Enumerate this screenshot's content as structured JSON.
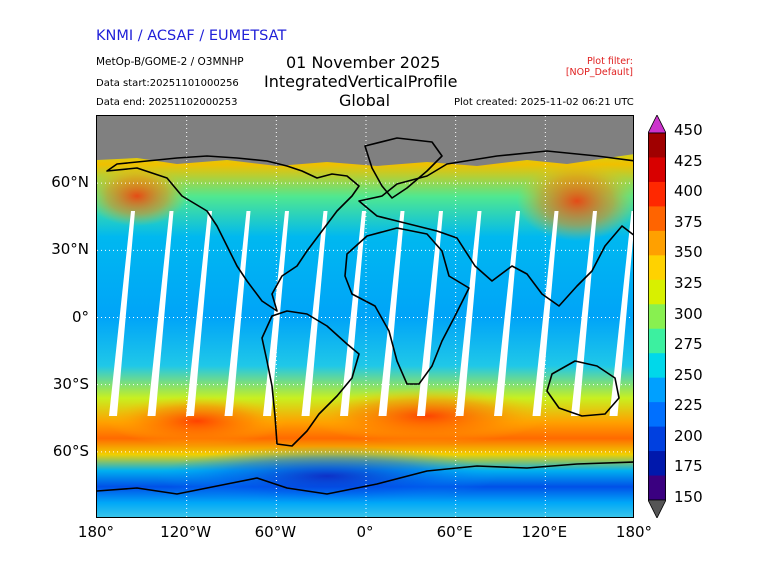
{
  "header": {
    "agency": "KNMI / ACSAF / EUMETSAT",
    "product": "MetOp-B/GOME-2 / O3MNHP",
    "data_start": "Data start:20251101000256",
    "data_end": "Data end: 20251102000253",
    "plot_created": "Plot created: 2025-11-02 06:21 UTC",
    "filter_line1": "Plot filter:",
    "filter_line2": "[NOP_Default]",
    "title_date": "01 November 2025",
    "title_quantity": "IntegratedVerticalProfile",
    "title_region": "Global"
  },
  "colors": {
    "agency_text": "#1f1fd8",
    "filter_text": "#e02020",
    "no_data": "#808080",
    "overflow_high": "#cc33cc",
    "overflow_low": "#555555"
  },
  "map": {
    "projection": "equirectangular",
    "lon_range": [
      -180,
      180
    ],
    "lat_range": [
      -90,
      90
    ],
    "graticule": "dotted",
    "lon_ticks": [
      "180°",
      "120°W",
      "60°W",
      "0°",
      "60°E",
      "120°E",
      "180°"
    ],
    "lat_ticks": [
      "60°N",
      "30°N",
      "0°",
      "30°S",
      "60°S"
    ],
    "no_data_region": "north polar night (grey)",
    "orbit_gaps": "white diagonal swath gaps between 60°S and 60°N"
  },
  "colorbar": {
    "ticks": [
      "450",
      "425",
      "400",
      "375",
      "350",
      "325",
      "300",
      "275",
      "250",
      "225",
      "200",
      "175",
      "150"
    ],
    "min": 150,
    "max": 450,
    "extend": "both",
    "colors": [
      "#3a0080",
      "#0018ac",
      "#0040e0",
      "#0070ff",
      "#00a0ff",
      "#00d8ea",
      "#3cf0a0",
      "#88f050",
      "#d8f000",
      "#ffd200",
      "#ffa000",
      "#ff6400",
      "#ff2800",
      "#d80000",
      "#a00000"
    ]
  }
}
